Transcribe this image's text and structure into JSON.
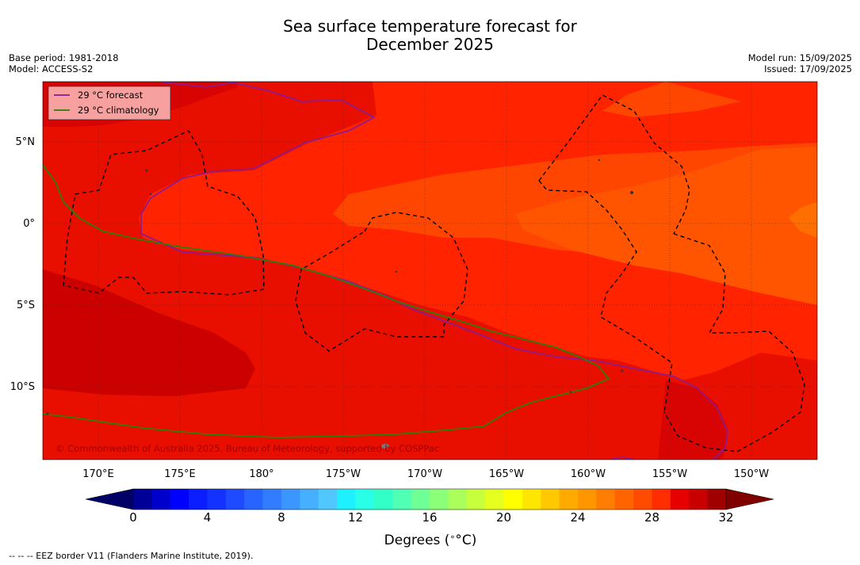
{
  "title": {
    "line1": "Sea surface temperature forecast for",
    "line2": "December 2025"
  },
  "info_left": {
    "base_period": "Base period: 1981-2018",
    "model": "Model: ACCESS-S2"
  },
  "info_right": {
    "model_run": "Model run: 15/09/2025",
    "issued": "Issued: 17/09/2025"
  },
  "legend": {
    "forecast_label": "29 °C  forecast",
    "forecast_color": "#8e1a8e",
    "climatology_label": "29 °C  climatology",
    "climatology_color": "#2e7d0c"
  },
  "lat_labels": [
    "5°N",
    "0°",
    "5°S",
    "10°S"
  ],
  "lon_labels": [
    "170°E",
    "175°E",
    "180°",
    "175°W",
    "170°W",
    "165°W",
    "160°W",
    "155°W",
    "150°W"
  ],
  "copyright": "© Commonwealth of Australia 2025, Bureau of Meteorology, supported by COSPPac",
  "colorbar": {
    "tick_labels": [
      "0",
      "4",
      "8",
      "12",
      "16",
      "20",
      "24",
      "28",
      "32"
    ],
    "title": "Degrees (",
    "title_unit": "°C)",
    "colors": [
      "#000099",
      "#0000cc",
      "#0000ff",
      "#0a1eff",
      "#1432ff",
      "#1e4bff",
      "#2864ff",
      "#327dff",
      "#3c96ff",
      "#46afff",
      "#50c8ff",
      "#1ef0ff",
      "#28ffe6",
      "#32ffc8",
      "#50ffb4",
      "#6eff96",
      "#8cff78",
      "#aaff5a",
      "#c8ff3c",
      "#e6ff1e",
      "#ffff00",
      "#ffe600",
      "#ffc800",
      "#ffaa00",
      "#ff9600",
      "#ff7d00",
      "#ff6400",
      "#ff4b00",
      "#ff2d00",
      "#e60000",
      "#c80000",
      "#a00000"
    ],
    "low_color": "#000066",
    "high_color": "#800000"
  },
  "footer": "--  --  -- EEZ border V11 (Flanders Marine Institute, 2019)."
}
